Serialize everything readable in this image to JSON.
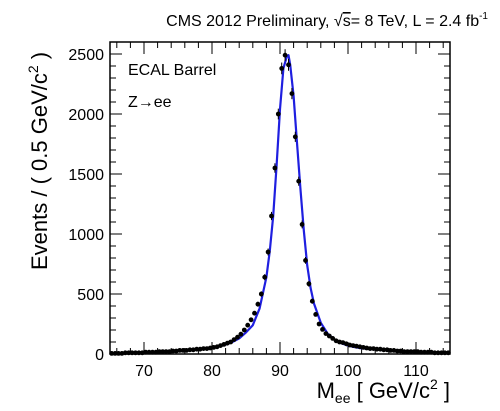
{
  "chart_data": {
    "type": "line",
    "title": {
      "prefix": "CMS 2012 Preliminary, ",
      "sqrt_symbol": "√",
      "sqrt_arg": "s",
      "suffix": "= 8 TeV, L = 2.4 fb",
      "superscript": "-1"
    },
    "ylabel": {
      "main": "Events / ( 0.5 GeV/c",
      "superscript": "2",
      "close": " )"
    },
    "xlabel": {
      "main": "M",
      "subscript": "ee",
      "rest": " [ GeV/c",
      "superscript": "2",
      "close": " ]"
    },
    "annotations": [
      "ECAL Barrel",
      "Z→ee"
    ],
    "xlim": [
      65,
      115
    ],
    "ylim": [
      0,
      2600
    ],
    "x_major_ticks": [
      70,
      80,
      90,
      100,
      110
    ],
    "x_minor_step": 2,
    "y_major_ticks": [
      0,
      500,
      1000,
      1500,
      2000,
      2500
    ],
    "y_minor_step": 100,
    "grid": false,
    "legend": "none",
    "colors": {
      "data": "#000000",
      "fit": "#1f1fe0",
      "axes": "#000000"
    },
    "series": [
      {
        "kind": "data_points_with_errors",
        "x": [
          65.25,
          65.75,
          66.25,
          66.75,
          67.25,
          67.75,
          68.25,
          68.75,
          69.25,
          69.75,
          70.25,
          70.75,
          71.25,
          71.75,
          72.25,
          72.75,
          73.25,
          73.75,
          74.25,
          74.75,
          75.25,
          75.75,
          76.25,
          76.75,
          77.25,
          77.75,
          78.25,
          78.75,
          79.25,
          79.75,
          80.25,
          80.75,
          81.25,
          81.75,
          82.25,
          82.75,
          83.25,
          83.75,
          84.25,
          84.75,
          85.25,
          85.75,
          86.25,
          86.75,
          87.25,
          87.75,
          88.25,
          88.75,
          89.25,
          89.75,
          90.25,
          90.75,
          91.25,
          91.75,
          92.25,
          92.75,
          93.25,
          93.75,
          94.25,
          94.75,
          95.25,
          95.75,
          96.25,
          96.75,
          97.25,
          97.75,
          98.25,
          98.75,
          99.25,
          99.75,
          100.25,
          100.75,
          101.25,
          101.75,
          102.25,
          102.75,
          103.25,
          103.75,
          104.25,
          104.75,
          105.25,
          105.75,
          106.25,
          106.75,
          107.25,
          107.75,
          108.25,
          108.75,
          109.25,
          109.75,
          110.25,
          110.75,
          111.25,
          111.75,
          112.25,
          112.75,
          113.25,
          113.75,
          114.25,
          114.75
        ],
        "y": [
          5,
          5,
          5,
          5,
          10,
          10,
          10,
          10,
          10,
          10,
          15,
          15,
          15,
          15,
          20,
          20,
          20,
          20,
          25,
          25,
          30,
          30,
          30,
          35,
          35,
          40,
          40,
          45,
          45,
          50,
          55,
          60,
          70,
          80,
          90,
          100,
          120,
          140,
          165,
          200,
          240,
          285,
          340,
          415,
          500,
          640,
          850,
          1150,
          1550,
          2000,
          2380,
          2490,
          2410,
          2170,
          1810,
          1440,
          1080,
          780,
          585,
          440,
          330,
          250,
          205,
          170,
          150,
          130,
          110,
          100,
          95,
          85,
          75,
          70,
          65,
          60,
          55,
          50,
          45,
          45,
          40,
          40,
          35,
          35,
          30,
          30,
          25,
          25,
          20,
          20,
          20,
          20,
          20,
          15,
          15,
          15,
          15,
          10,
          10,
          10,
          10,
          10
        ]
      },
      {
        "kind": "fit_line",
        "x": [
          65,
          66,
          67,
          68,
          69,
          70,
          71,
          72,
          73,
          74,
          75,
          76,
          77,
          78,
          79,
          80,
          81,
          82,
          83,
          84,
          85,
          86,
          87,
          88,
          88.5,
          89,
          89.5,
          90,
          90.5,
          91,
          91.25,
          91.5,
          92,
          92.5,
          93,
          93.5,
          94,
          94.5,
          95,
          96,
          97,
          98,
          99,
          100,
          101,
          102,
          103,
          104,
          105,
          106,
          107,
          108,
          109,
          110,
          111,
          112,
          113,
          114,
          115
        ],
        "y": [
          5,
          5,
          5,
          8,
          10,
          12,
          14,
          16,
          18,
          20,
          25,
          28,
          32,
          37,
          43,
          50,
          62,
          78,
          100,
          130,
          180,
          240,
          380,
          640,
          860,
          1150,
          1570,
          2040,
          2380,
          2480,
          2490,
          2410,
          2150,
          1760,
          1380,
          1030,
          740,
          550,
          420,
          260,
          170,
          120,
          90,
          70,
          57,
          48,
          42,
          37,
          33,
          29,
          26,
          23,
          21,
          19,
          17,
          15,
          13,
          11,
          10
        ]
      }
    ]
  }
}
